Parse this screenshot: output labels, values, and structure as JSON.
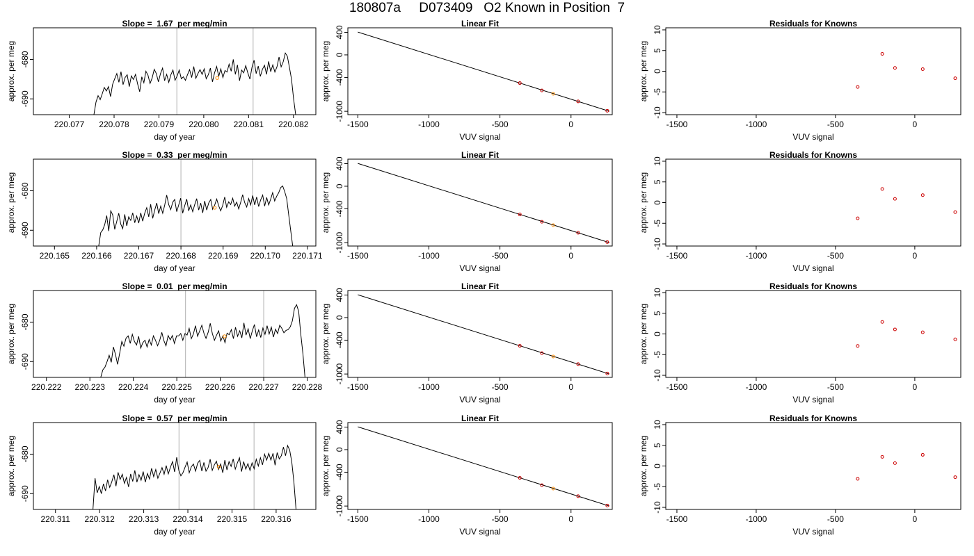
{
  "main_title": "180807a     D073409   O2 Known in Position  7",
  "colors": {
    "line": "#000000",
    "highlight": "#ff8c00",
    "marker": "#cc0000",
    "vline": "#bebebe"
  },
  "chart_data": [
    {
      "row": 1,
      "time_series": {
        "type": "line",
        "title": "Slope =  1.67  per meg/min",
        "xlabel": "day of year",
        "ylabel": "approx. per meg",
        "xlim": [
          220.0762,
          220.0825
        ],
        "ylim": [
          -694,
          -672
        ],
        "x_ticks": [
          "220.077",
          "220.078",
          "220.079",
          "220.080",
          "220.081",
          "220.082"
        ],
        "y_ticks": [
          "-680",
          "-690"
        ],
        "vlines": [
          220.0794,
          220.0811
        ],
        "series_start": 220.07755,
        "series_end": 220.08205,
        "values": [
          -694.0,
          -690.8,
          -689.2,
          -690.2,
          -688.7,
          -687.1,
          -688.0,
          -686.9,
          -689.4,
          -686.3,
          -684.9,
          -683.6,
          -685.8,
          -683.1,
          -686.4,
          -684.6,
          -683.9,
          -686.9,
          -684.2,
          -685.1,
          -683.8,
          -686.2,
          -688.2,
          -684.4,
          -685.9,
          -683.0,
          -684.0,
          -686.1,
          -684.7,
          -682.5,
          -683.6,
          -685.7,
          -683.6,
          -682.2,
          -685.4,
          -683.8,
          -685.8,
          -683.9,
          -682.7,
          -685.3,
          -684.2,
          -682.7,
          -684.9,
          -684.4,
          -685.3,
          -683.9,
          -682.6,
          -684.6,
          -681.8,
          -684.8,
          -683.6,
          -682.6,
          -683.8,
          -682.4,
          -684.9,
          -683.9,
          -682.2,
          -685.7,
          -683.4,
          -681.8,
          -684.3,
          -682.4,
          -684.6,
          -682.8,
          -683.2,
          -681.2,
          -683.0,
          -680.0,
          -683.8,
          -681.4,
          -685.4,
          -682.7,
          -683.4,
          -681.6,
          -683.4,
          -685.0,
          -682.0,
          -680.2,
          -683.6,
          -681.7,
          -684.3,
          -682.5,
          -681.5,
          -683.8,
          -680.5,
          -683.1,
          -681.4,
          -683.2,
          -681.9,
          -679.4,
          -681.9,
          -680.6,
          -678.4,
          -679.2,
          -682.0,
          -685.0,
          -690.0,
          -694.0
        ],
        "highlight": {
          "x": 220.0803,
          "y": -684.7
        }
      },
      "linear_fit": {
        "type": "scatter",
        "title": "Linear Fit",
        "xlabel": "VUV signal",
        "ylabel": "approx. per meg",
        "xlim": [
          -1570,
          290
        ],
        "ylim": [
          -1060,
          480
        ],
        "x_ticks": [
          "-1500",
          "-1000",
          "-500",
          "0"
        ],
        "y_ticks": [
          "400",
          "0",
          "-400",
          "-1000"
        ],
        "line": {
          "x": [
            -1500,
            270
          ],
          "y": [
            405,
            -1000
          ]
        },
        "points": [
          {
            "x": -360,
            "y": -500
          },
          {
            "x": -205,
            "y": -630
          },
          {
            "x": -125,
            "y": -690,
            "highlight": true
          },
          {
            "x": 50,
            "y": -825
          },
          {
            "x": 255,
            "y": -990
          }
        ]
      },
      "residuals": {
        "type": "scatter",
        "title": "Residuals for Knowns",
        "xlabel": "VUV signal",
        "ylabel": "approx. per meg",
        "xlim": [
          -1570,
          290
        ],
        "ylim": [
          -10.5,
          10.5
        ],
        "x_ticks": [
          "-1500",
          "-1000",
          "-500",
          "0"
        ],
        "y_ticks": [
          "10",
          "5",
          "0",
          "-5",
          "-10"
        ],
        "points": [
          {
            "x": -360,
            "y": -3.8
          },
          {
            "x": -205,
            "y": 4.2
          },
          {
            "x": -125,
            "y": 0.8
          },
          {
            "x": 50,
            "y": 0.5
          },
          {
            "x": 255,
            "y": -1.7
          }
        ]
      }
    },
    {
      "row": 2,
      "time_series": {
        "type": "line",
        "title": "Slope =  0.33  per meg/min",
        "xlabel": "day of year",
        "ylabel": "approx. per meg",
        "xlim": [
          220.1645,
          220.1712
        ],
        "ylim": [
          -694,
          -672
        ],
        "x_ticks": [
          "220.165",
          "220.166",
          "220.167",
          "220.168",
          "220.169",
          "220.170",
          "220.171"
        ],
        "y_ticks": [
          "-680",
          "-690"
        ],
        "vlines": [
          220.168,
          220.1697
        ],
        "series_start": 220.16605,
        "series_end": 220.17065,
        "values": [
          -694.0,
          -690.6,
          -689.9,
          -688.6,
          -686.3,
          -690.2,
          -685.1,
          -686.1,
          -689.8,
          -687.8,
          -685.7,
          -688.4,
          -689.6,
          -686.0,
          -688.9,
          -686.6,
          -687.5,
          -685.6,
          -688.1,
          -686.4,
          -688.2,
          -685.6,
          -687.7,
          -685.7,
          -684.3,
          -686.6,
          -683.4,
          -687.0,
          -684.9,
          -683.1,
          -685.8,
          -683.9,
          -685.7,
          -683.6,
          -681.1,
          -683.5,
          -684.8,
          -682.9,
          -682.2,
          -685.3,
          -683.6,
          -681.9,
          -685.7,
          -683.8,
          -682.1,
          -685.1,
          -683.6,
          -685.3,
          -683.5,
          -682.0,
          -684.9,
          -683.1,
          -685.6,
          -682.6,
          -684.9,
          -683.1,
          -682.2,
          -684.7,
          -683.6,
          -682.1,
          -683.8,
          -685.1,
          -683.7,
          -681.6,
          -684.2,
          -682.8,
          -683.5,
          -681.9,
          -683.9,
          -682.9,
          -684.6,
          -682.9,
          -681.0,
          -683.0,
          -684.1,
          -682.0,
          -683.6,
          -681.2,
          -683.6,
          -681.6,
          -684.0,
          -682.3,
          -681.1,
          -683.9,
          -681.7,
          -683.6,
          -682.1,
          -680.5,
          -682.6,
          -681.4,
          -680.5,
          -679.2,
          -678.8,
          -680.2,
          -682.0,
          -686.0,
          -690.0,
          -694.0
        ],
        "highlight": {
          "x": 220.1688,
          "y": -684.3
        }
      },
      "linear_fit": {
        "type": "scatter",
        "title": "Linear Fit",
        "xlabel": "VUV signal",
        "ylabel": "approx. per meg",
        "xlim": [
          -1570,
          290
        ],
        "ylim": [
          -1060,
          480
        ],
        "x_ticks": [
          "-1500",
          "-1000",
          "-500",
          "0"
        ],
        "y_ticks": [
          "400",
          "0",
          "-400",
          "-1000"
        ],
        "line": {
          "x": [
            -1500,
            270
          ],
          "y": [
            405,
            -1000
          ]
        },
        "points": [
          {
            "x": -360,
            "y": -500
          },
          {
            "x": -205,
            "y": -630
          },
          {
            "x": -125,
            "y": -690,
            "highlight": true
          },
          {
            "x": 50,
            "y": -825
          },
          {
            "x": 255,
            "y": -990
          }
        ]
      },
      "residuals": {
        "type": "scatter",
        "title": "Residuals for Knowns",
        "xlabel": "VUV signal",
        "ylabel": "approx. per meg",
        "xlim": [
          -1570,
          290
        ],
        "ylim": [
          -10.5,
          10.5
        ],
        "x_ticks": [
          "-1500",
          "-1000",
          "-500",
          "0"
        ],
        "y_ticks": [
          "10",
          "5",
          "0",
          "-5",
          "-10"
        ],
        "points": [
          {
            "x": -360,
            "y": -3.8
          },
          {
            "x": -205,
            "y": 3.3
          },
          {
            "x": -125,
            "y": 0.9
          },
          {
            "x": 50,
            "y": 1.8
          },
          {
            "x": 255,
            "y": -2.3
          }
        ]
      }
    },
    {
      "row": 3,
      "time_series": {
        "type": "line",
        "title": "Slope =  0.01  per meg/min",
        "xlabel": "day of year",
        "ylabel": "approx. per meg",
        "xlim": [
          220.2217,
          220.2282
        ],
        "ylim": [
          -694,
          -672
        ],
        "x_ticks": [
          "220.222",
          "220.223",
          "220.224",
          "220.225",
          "220.226",
          "220.227",
          "220.228"
        ],
        "y_ticks": [
          "-680",
          "-690"
        ],
        "vlines": [
          220.2252,
          220.227
        ],
        "series_start": 220.22325,
        "series_end": 220.22795,
        "values": [
          -694.0,
          -692.1,
          -691.4,
          -690.0,
          -688.4,
          -690.2,
          -686.3,
          -688.2,
          -690.7,
          -687.8,
          -684.9,
          -686.1,
          -684.1,
          -683.5,
          -685.4,
          -683.1,
          -684.9,
          -685.8,
          -683.6,
          -686.6,
          -685.2,
          -684.6,
          -686.3,
          -684.4,
          -685.8,
          -683.5,
          -684.6,
          -686.0,
          -684.6,
          -682.6,
          -684.7,
          -686.0,
          -683.4,
          -684.5,
          -683.4,
          -685.4,
          -683.5,
          -683.5,
          -682.9,
          -684.6,
          -682.9,
          -683.3,
          -681.6,
          -684.2,
          -683.0,
          -680.9,
          -683.6,
          -682.2,
          -680.8,
          -682.8,
          -684.1,
          -682.6,
          -680.3,
          -682.9,
          -684.6,
          -683.3,
          -682.2,
          -684.8,
          -683.5,
          -685.2,
          -682.8,
          -683.2,
          -681.9,
          -684.2,
          -681.3,
          -683.6,
          -682.2,
          -684.0,
          -680.2,
          -683.3,
          -681.7,
          -684.2,
          -682.2,
          -680.6,
          -683.7,
          -682.0,
          -683.9,
          -681.5,
          -683.1,
          -680.9,
          -683.0,
          -681.3,
          -683.8,
          -681.8,
          -682.9,
          -680.8,
          -681.6,
          -682.7,
          -682.1,
          -681.9,
          -681.2,
          -679.7,
          -676.5,
          -675.6,
          -677.3,
          -683.0,
          -688.0,
          -694.0
        ],
        "highlight": {
          "x": 220.2261,
          "y": -683.6
        }
      },
      "linear_fit": {
        "type": "scatter",
        "title": "Linear Fit",
        "xlabel": "VUV signal",
        "ylabel": "approx. per meg",
        "xlim": [
          -1570,
          290
        ],
        "ylim": [
          -1060,
          480
        ],
        "x_ticks": [
          "-1500",
          "-1000",
          "-500",
          "0"
        ],
        "y_ticks": [
          "400",
          "0",
          "-400",
          "-1000"
        ],
        "line": {
          "x": [
            -1500,
            270
          ],
          "y": [
            405,
            -1000
          ]
        },
        "points": [
          {
            "x": -360,
            "y": -500
          },
          {
            "x": -205,
            "y": -630
          },
          {
            "x": -125,
            "y": -690,
            "highlight": true
          },
          {
            "x": 50,
            "y": -825
          },
          {
            "x": 255,
            "y": -990
          }
        ]
      },
      "residuals": {
        "type": "scatter",
        "title": "Residuals for Knowns",
        "xlabel": "VUV signal",
        "ylabel": "approx. per meg",
        "xlim": [
          -1570,
          290
        ],
        "ylim": [
          -10.5,
          10.5
        ],
        "x_ticks": [
          "-1500",
          "-1000",
          "-500",
          "0"
        ],
        "y_ticks": [
          "10",
          "5",
          "0",
          "-5",
          "-10"
        ],
        "points": [
          {
            "x": -360,
            "y": -2.9
          },
          {
            "x": -205,
            "y": 2.9
          },
          {
            "x": -125,
            "y": 1.1
          },
          {
            "x": 50,
            "y": 0.4
          },
          {
            "x": 255,
            "y": -1.3
          }
        ]
      }
    },
    {
      "row": 4,
      "time_series": {
        "type": "line",
        "title": "Slope =  0.57  per meg/min",
        "xlabel": "day of year",
        "ylabel": "approx. per meg",
        "xlim": [
          220.3105,
          220.3169
        ],
        "ylim": [
          -694,
          -672
        ],
        "x_ticks": [
          "220.311",
          "220.312",
          "220.313",
          "220.314",
          "220.315",
          "220.316"
        ],
        "y_ticks": [
          "-680",
          "-690"
        ],
        "vlines": [
          220.3138,
          220.3155
        ],
        "series_start": 220.31185,
        "series_end": 220.31645,
        "values": [
          -694.0,
          -686.1,
          -689.8,
          -688.2,
          -690.0,
          -687.5,
          -689.3,
          -686.5,
          -688.4,
          -687.0,
          -685.2,
          -688.1,
          -684.6,
          -686.4,
          -685.1,
          -687.4,
          -685.9,
          -688.3,
          -685.0,
          -686.9,
          -684.1,
          -687.1,
          -685.2,
          -686.6,
          -684.4,
          -687.1,
          -684.9,
          -686.3,
          -683.6,
          -685.7,
          -683.9,
          -686.1,
          -684.8,
          -683.4,
          -685.1,
          -682.9,
          -685.0,
          -683.3,
          -681.9,
          -684.5,
          -680.8,
          -684.1,
          -685.5,
          -684.7,
          -683.3,
          -682.0,
          -684.7,
          -683.2,
          -682.5,
          -684.3,
          -682.3,
          -681.6,
          -684.3,
          -682.1,
          -684.3,
          -683.4,
          -681.3,
          -684.1,
          -682.7,
          -681.8,
          -683.9,
          -682.5,
          -684.7,
          -681.5,
          -684.0,
          -681.9,
          -683.1,
          -681.2,
          -683.8,
          -682.2,
          -680.9,
          -684.4,
          -681.9,
          -683.8,
          -682.4,
          -684.1,
          -682.2,
          -683.7,
          -681.3,
          -683.0,
          -680.9,
          -682.7,
          -680.0,
          -681.5,
          -679.8,
          -681.5,
          -679.8,
          -682.8,
          -679.6,
          -681.2,
          -680.4,
          -678.2,
          -680.4,
          -677.8,
          -679.0,
          -682.0,
          -687.0,
          -694.0
        ],
        "highlight": {
          "x": 220.3147,
          "y": -683.2
        }
      },
      "linear_fit": {
        "type": "scatter",
        "title": "Linear Fit",
        "xlabel": "VUV signal",
        "ylabel": "approx. per meg",
        "xlim": [
          -1570,
          290
        ],
        "ylim": [
          -1060,
          480
        ],
        "x_ticks": [
          "-1500",
          "-1000",
          "-500",
          "0"
        ],
        "y_ticks": [
          "400",
          "0",
          "-400",
          "-1000"
        ],
        "line": {
          "x": [
            -1500,
            270
          ],
          "y": [
            405,
            -1000
          ]
        },
        "points": [
          {
            "x": -360,
            "y": -500
          },
          {
            "x": -205,
            "y": -630
          },
          {
            "x": -125,
            "y": -690,
            "highlight": true
          },
          {
            "x": 50,
            "y": -825
          },
          {
            "x": 255,
            "y": -990
          }
        ]
      },
      "residuals": {
        "type": "scatter",
        "title": "Residuals for Knowns",
        "xlabel": "VUV signal",
        "ylabel": "approx. per meg",
        "xlim": [
          -1570,
          290
        ],
        "ylim": [
          -10.5,
          10.5
        ],
        "x_ticks": [
          "-1500",
          "-1000",
          "-500",
          "0"
        ],
        "y_ticks": [
          "10",
          "5",
          "0",
          "-5",
          "-10"
        ],
        "points": [
          {
            "x": -360,
            "y": -3.1
          },
          {
            "x": -205,
            "y": 2.2
          },
          {
            "x": -125,
            "y": 0.7
          },
          {
            "x": 50,
            "y": 2.7
          },
          {
            "x": 255,
            "y": -2.7
          }
        ]
      }
    }
  ]
}
